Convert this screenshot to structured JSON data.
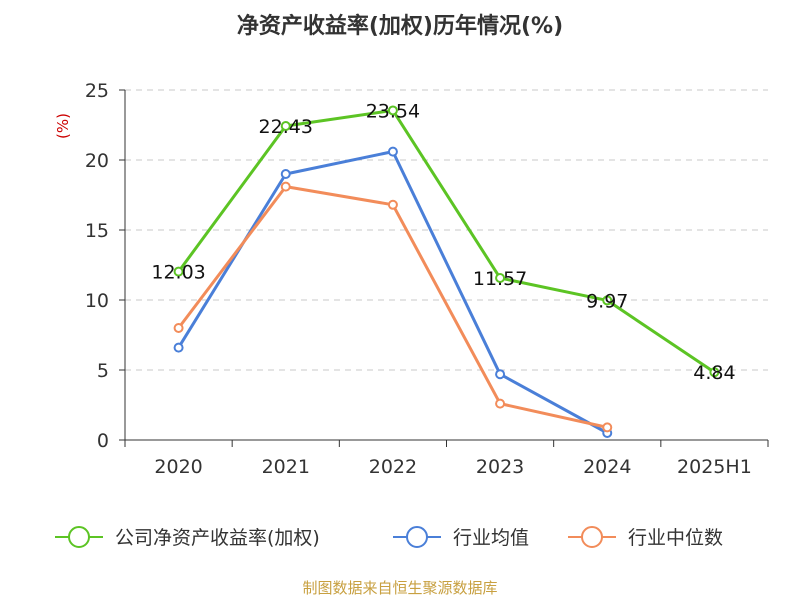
{
  "chart_data": {
    "type": "line",
    "title": "净资产收益率(加权)历年情况(%)",
    "ylabel": "(%)",
    "xlabel": "",
    "categories": [
      "2020",
      "2021",
      "2022",
      "2023",
      "2024",
      "2025H1"
    ],
    "ylim": [
      0,
      25
    ],
    "yticks": [
      0,
      5,
      10,
      15,
      20,
      25
    ],
    "grid": true,
    "legend_position": "bottom",
    "series": [
      {
        "name": "公司净资产收益率(加权)",
        "color": "#5cc424",
        "values": [
          12.03,
          22.43,
          23.54,
          11.57,
          9.97,
          4.84
        ],
        "labels": [
          "12.03",
          "22.43",
          "23.54",
          "11.57",
          "9.97",
          "4.84"
        ],
        "show_labels": true
      },
      {
        "name": "行业均值",
        "color": "#4a7fd8",
        "values": [
          6.6,
          19.0,
          20.6,
          4.7,
          0.5,
          null
        ],
        "show_labels": false
      },
      {
        "name": "行业中位数",
        "color": "#f28c5a",
        "values": [
          8.0,
          18.1,
          16.8,
          2.6,
          0.9,
          null
        ],
        "show_labels": false
      }
    ]
  },
  "source": "制图数据来自恒生聚源数据库"
}
